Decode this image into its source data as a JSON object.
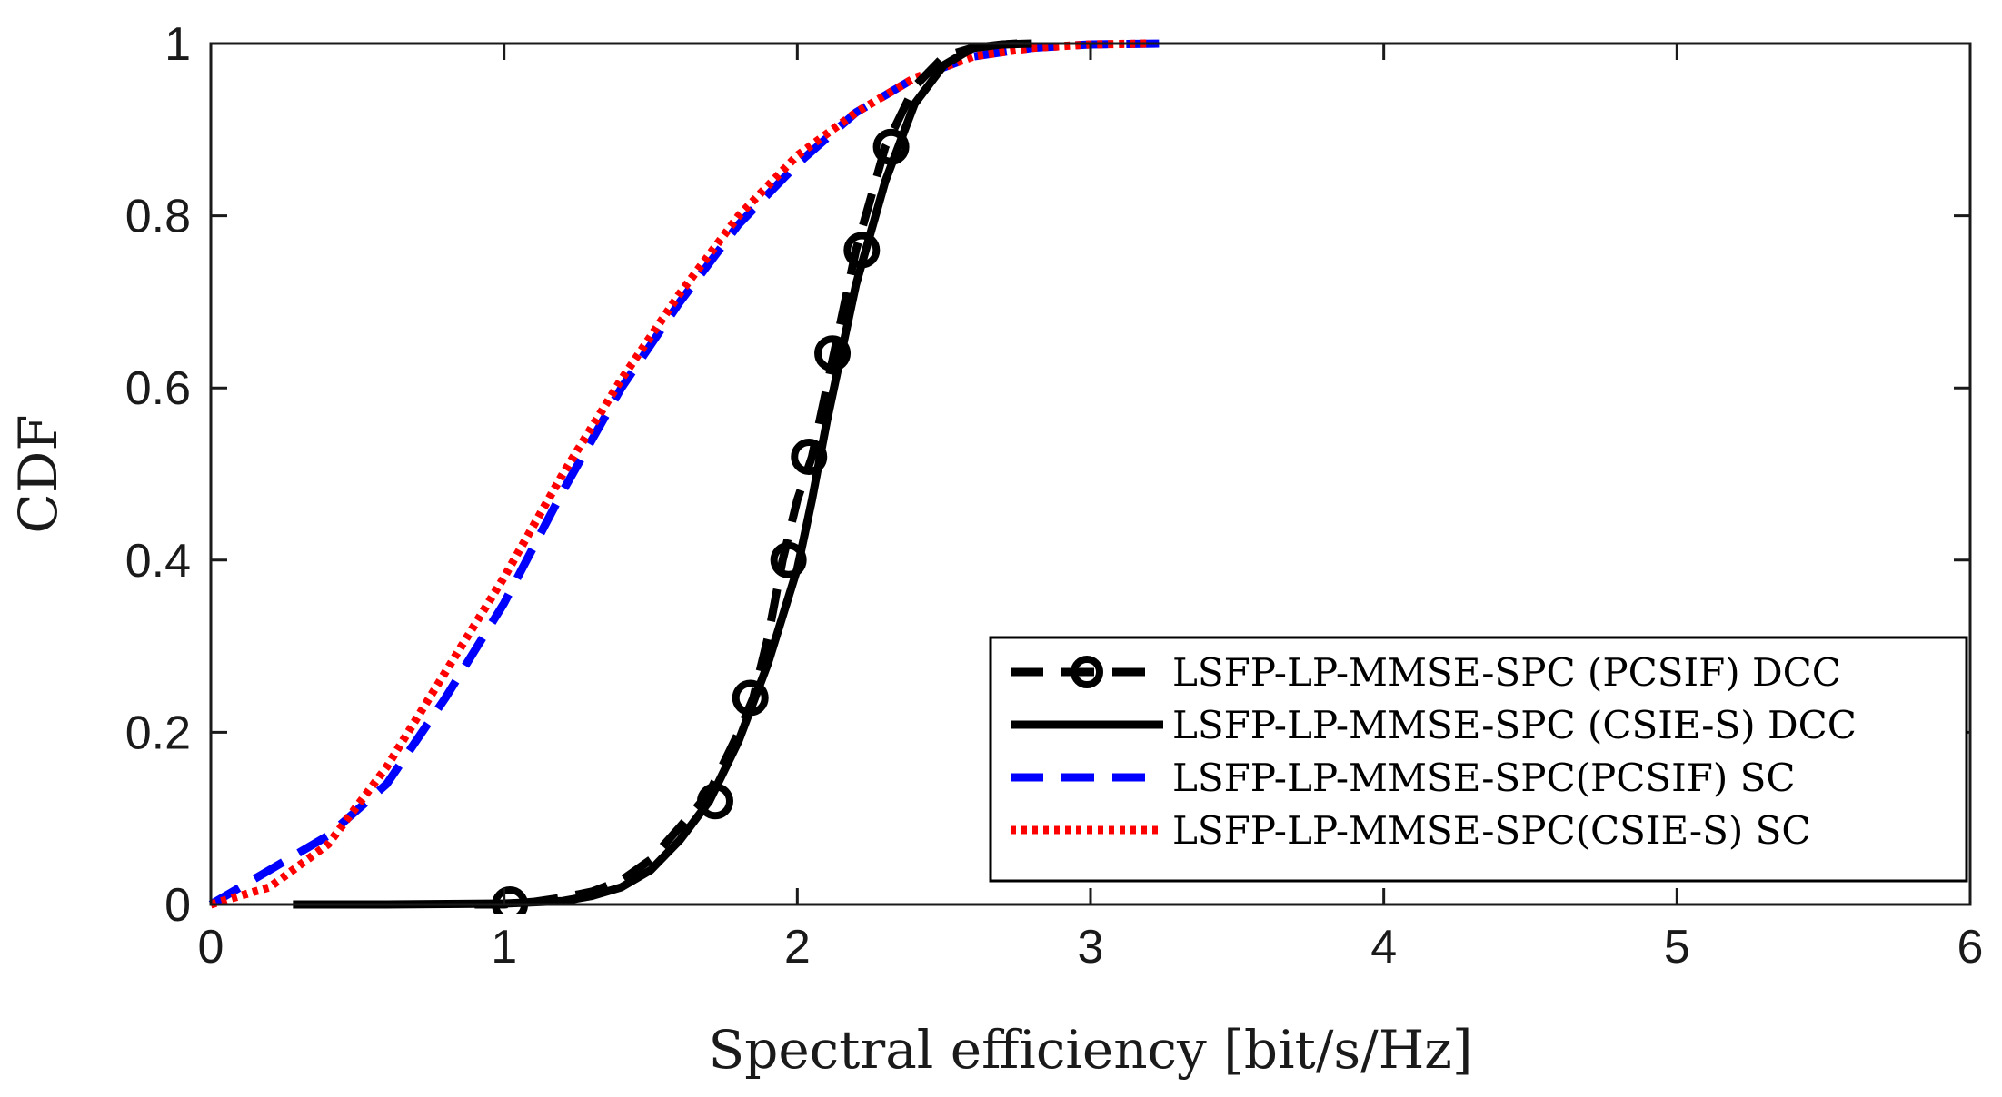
{
  "chart_data": {
    "type": "line",
    "xlabel": "Spectral efficiency [bit/s/Hz]",
    "ylabel": "CDF",
    "xlim": [
      0,
      6
    ],
    "ylim": [
      0,
      1
    ],
    "xticks": [
      "0",
      "1",
      "2",
      "3",
      "4",
      "5",
      "6"
    ],
    "yticks": [
      "0",
      "0.2",
      "0.4",
      "0.6",
      "0.8",
      "1"
    ],
    "grid": false,
    "legend_position": "bottom-right",
    "series": [
      {
        "name": "LSFP-LP-MMSE-SPC (PCSIF) DCC",
        "color": "#000000",
        "line_style": "dashed",
        "marker": "circle",
        "x": [
          0.9,
          1.0,
          1.1,
          1.2,
          1.3,
          1.4,
          1.5,
          1.6,
          1.7,
          1.8,
          1.85,
          1.9,
          1.95,
          2.0,
          2.05,
          2.1,
          2.2,
          2.3,
          2.4,
          2.5,
          2.6,
          2.7,
          2.75
        ],
        "y": [
          0.0,
          0.0,
          0.003,
          0.008,
          0.015,
          0.028,
          0.052,
          0.09,
          0.13,
          0.2,
          0.24,
          0.31,
          0.4,
          0.47,
          0.52,
          0.6,
          0.76,
          0.88,
          0.95,
          0.985,
          0.995,
          0.999,
          1.0
        ],
        "marker_x": [
          1.02,
          1.72,
          1.84,
          1.97,
          2.04,
          2.12,
          2.22,
          2.32
        ],
        "marker_y": [
          0.0,
          0.12,
          0.24,
          0.4,
          0.52,
          0.64,
          0.76,
          0.88
        ]
      },
      {
        "name": "LSFP-LP-MMSE-SPC (CSIE-S) DCC",
        "color": "#000000",
        "line_style": "solid",
        "x": [
          0.28,
          0.6,
          1.0,
          1.2,
          1.3,
          1.4,
          1.5,
          1.6,
          1.7,
          1.8,
          1.9,
          2.0,
          2.05,
          2.1,
          2.15,
          2.2,
          2.3,
          2.4,
          2.5,
          2.6,
          2.7,
          2.8
        ],
        "y": [
          0.0,
          0.0,
          0.001,
          0.004,
          0.01,
          0.02,
          0.04,
          0.075,
          0.12,
          0.19,
          0.28,
          0.39,
          0.47,
          0.56,
          0.64,
          0.72,
          0.84,
          0.93,
          0.975,
          0.995,
          0.999,
          1.0
        ]
      },
      {
        "name": "LSFP-LP-MMSE-SPC(PCSIF) SC",
        "color": "#0000ff",
        "line_style": "dashed",
        "x": [
          0.0,
          0.2,
          0.4,
          0.6,
          0.8,
          1.0,
          1.2,
          1.4,
          1.6,
          1.8,
          2.0,
          2.2,
          2.4,
          2.6,
          2.8,
          3.0,
          3.25
        ],
        "y": [
          0.0,
          0.04,
          0.08,
          0.14,
          0.24,
          0.35,
          0.48,
          0.6,
          0.7,
          0.79,
          0.86,
          0.92,
          0.96,
          0.985,
          0.995,
          0.999,
          1.0
        ]
      },
      {
        "name": "LSFP-LP-MMSE-SPC(CSIE-S) SC",
        "color": "#ff0000",
        "line_style": "dotted",
        "x": [
          0.0,
          0.2,
          0.4,
          0.6,
          0.8,
          1.0,
          1.2,
          1.4,
          1.6,
          1.8,
          2.0,
          2.2,
          2.4,
          2.6,
          2.8,
          3.0,
          3.2
        ],
        "y": [
          0.0,
          0.02,
          0.07,
          0.16,
          0.27,
          0.38,
          0.5,
          0.61,
          0.71,
          0.8,
          0.87,
          0.92,
          0.96,
          0.985,
          0.995,
          0.999,
          1.0
        ]
      }
    ]
  }
}
